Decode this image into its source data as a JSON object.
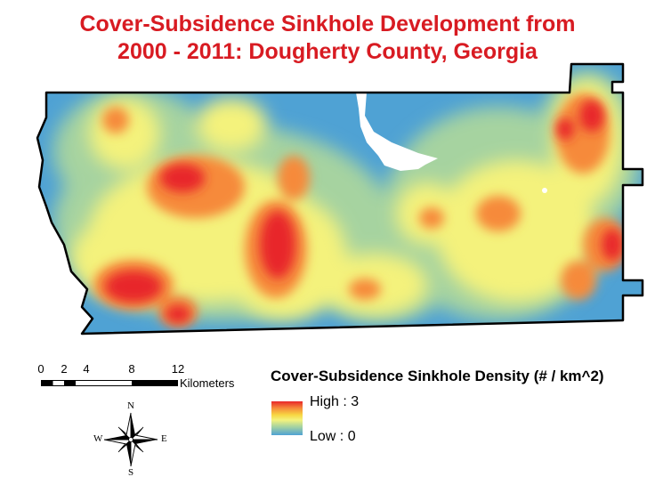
{
  "title": {
    "line1": "Cover-Subsidence Sinkhole Development from",
    "line2": "2000 - 2011: Dougherty County, Georgia"
  },
  "scale_bar": {
    "tick_labels": [
      "0",
      "2",
      "4",
      "8",
      "12"
    ],
    "unit": "Kilometers"
  },
  "north_arrow": {
    "n": "N",
    "s": "S",
    "e": "E",
    "w": "W",
    "icon": "compass-rose-icon"
  },
  "legend": {
    "title": "Cover-Subsidence Sinkhole Density (# / km^2)",
    "high_label": "High : 3",
    "low_label": "Low : 0",
    "colors": {
      "high": "#e8262a",
      "mid_high": "#f68a3a",
      "mid": "#f7d642",
      "mid_low": "#a6d3a0",
      "low": "#4fa2d4"
    }
  },
  "colors": {
    "title": "#d81b22",
    "boundary": "#000000",
    "water": "#ffffff"
  }
}
